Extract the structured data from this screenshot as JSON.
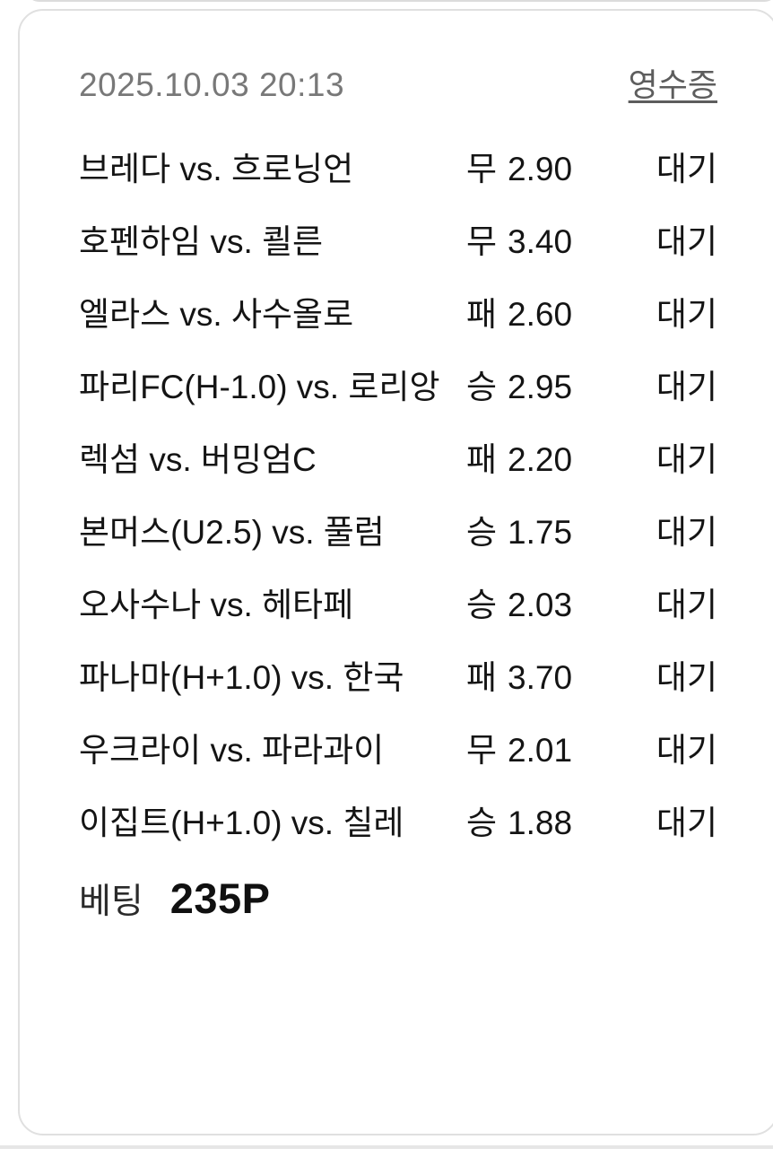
{
  "card": {
    "header": {
      "datetime": "2025.10.03 20:13",
      "receipt_label": "영수증"
    },
    "bets": [
      {
        "match": "브레다 vs. 흐로닝언",
        "pick": "무",
        "odds": "2.90",
        "status": "대기"
      },
      {
        "match": "호펜하임 vs. 쾰른",
        "pick": "무",
        "odds": "3.40",
        "status": "대기"
      },
      {
        "match": "엘라스 vs. 사수올로",
        "pick": "패",
        "odds": "2.60",
        "status": "대기"
      },
      {
        "match": "파리FC(H-1.0) vs. 로리앙",
        "pick": "승",
        "odds": "2.95",
        "status": "대기"
      },
      {
        "match": "렉섬 vs. 버밍엄C",
        "pick": "패",
        "odds": "2.20",
        "status": "대기"
      },
      {
        "match": "본머스(U2.5) vs. 풀럼",
        "pick": "승",
        "odds": "1.75",
        "status": "대기"
      },
      {
        "match": "오사수나 vs. 헤타페",
        "pick": "승",
        "odds": "2.03",
        "status": "대기"
      },
      {
        "match": "파나마(H+1.0) vs. 한국",
        "pick": "패",
        "odds": "3.70",
        "status": "대기"
      },
      {
        "match": "우크라이 vs. 파라과이",
        "pick": "무",
        "odds": "2.01",
        "status": "대기"
      },
      {
        "match": "이집트(H+1.0) vs. 칠레",
        "pick": "승",
        "odds": "1.88",
        "status": "대기"
      }
    ],
    "footer": {
      "bet_label": "베팅",
      "bet_amount": "235P"
    }
  },
  "colors": {
    "card_border": "#e0e0e0",
    "text": "#141414",
    "muted": "#787878",
    "link": "#5d5d5d",
    "divider": "#e6e6e6"
  }
}
